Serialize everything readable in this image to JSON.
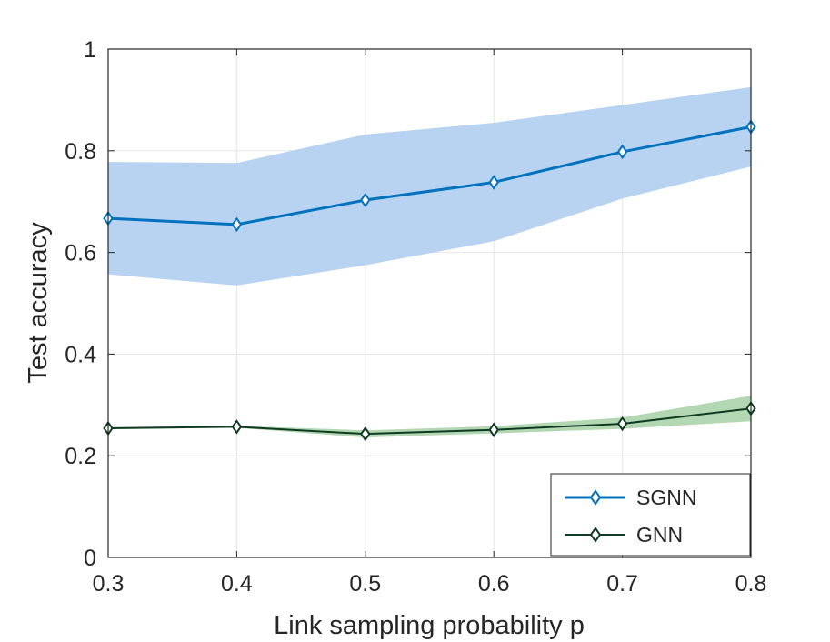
{
  "chart_data": {
    "type": "line",
    "title": "",
    "xlabel": "Link sampling probability p",
    "ylabel": "Test accuracy",
    "xlim": [
      0.3,
      0.8
    ],
    "ylim": [
      0,
      1
    ],
    "grid": true,
    "legend_position": "bottom-right",
    "x": [
      0.3,
      0.4,
      0.5,
      0.6,
      0.7,
      0.8
    ],
    "x_tick_labels": [
      "0.3",
      "0.4",
      "0.5",
      "0.6",
      "0.7",
      "0.8"
    ],
    "y_ticks": [
      0,
      0.2,
      0.4,
      0.6,
      0.8,
      1
    ],
    "y_tick_labels": [
      "0",
      "0.2",
      "0.4",
      "0.6",
      "0.8",
      "1"
    ],
    "series": [
      {
        "name": "SGNN",
        "color": "#0072BD",
        "band_color": "#B8D3F2",
        "marker": "diamond",
        "values": [
          0.667,
          0.655,
          0.703,
          0.738,
          0.798,
          0.847
        ],
        "upper": [
          0.778,
          0.776,
          0.832,
          0.855,
          0.89,
          0.925
        ],
        "lower": [
          0.557,
          0.535,
          0.575,
          0.622,
          0.706,
          0.769
        ]
      },
      {
        "name": "GNN",
        "color": "#0F3B22",
        "band_color": "#B3D7B3",
        "marker": "diamond",
        "values": [
          0.254,
          0.257,
          0.243,
          0.251,
          0.263,
          0.293
        ],
        "upper": [
          0.256,
          0.259,
          0.25,
          0.258,
          0.275,
          0.318
        ],
        "lower": [
          0.252,
          0.255,
          0.236,
          0.244,
          0.253,
          0.268
        ]
      }
    ]
  }
}
